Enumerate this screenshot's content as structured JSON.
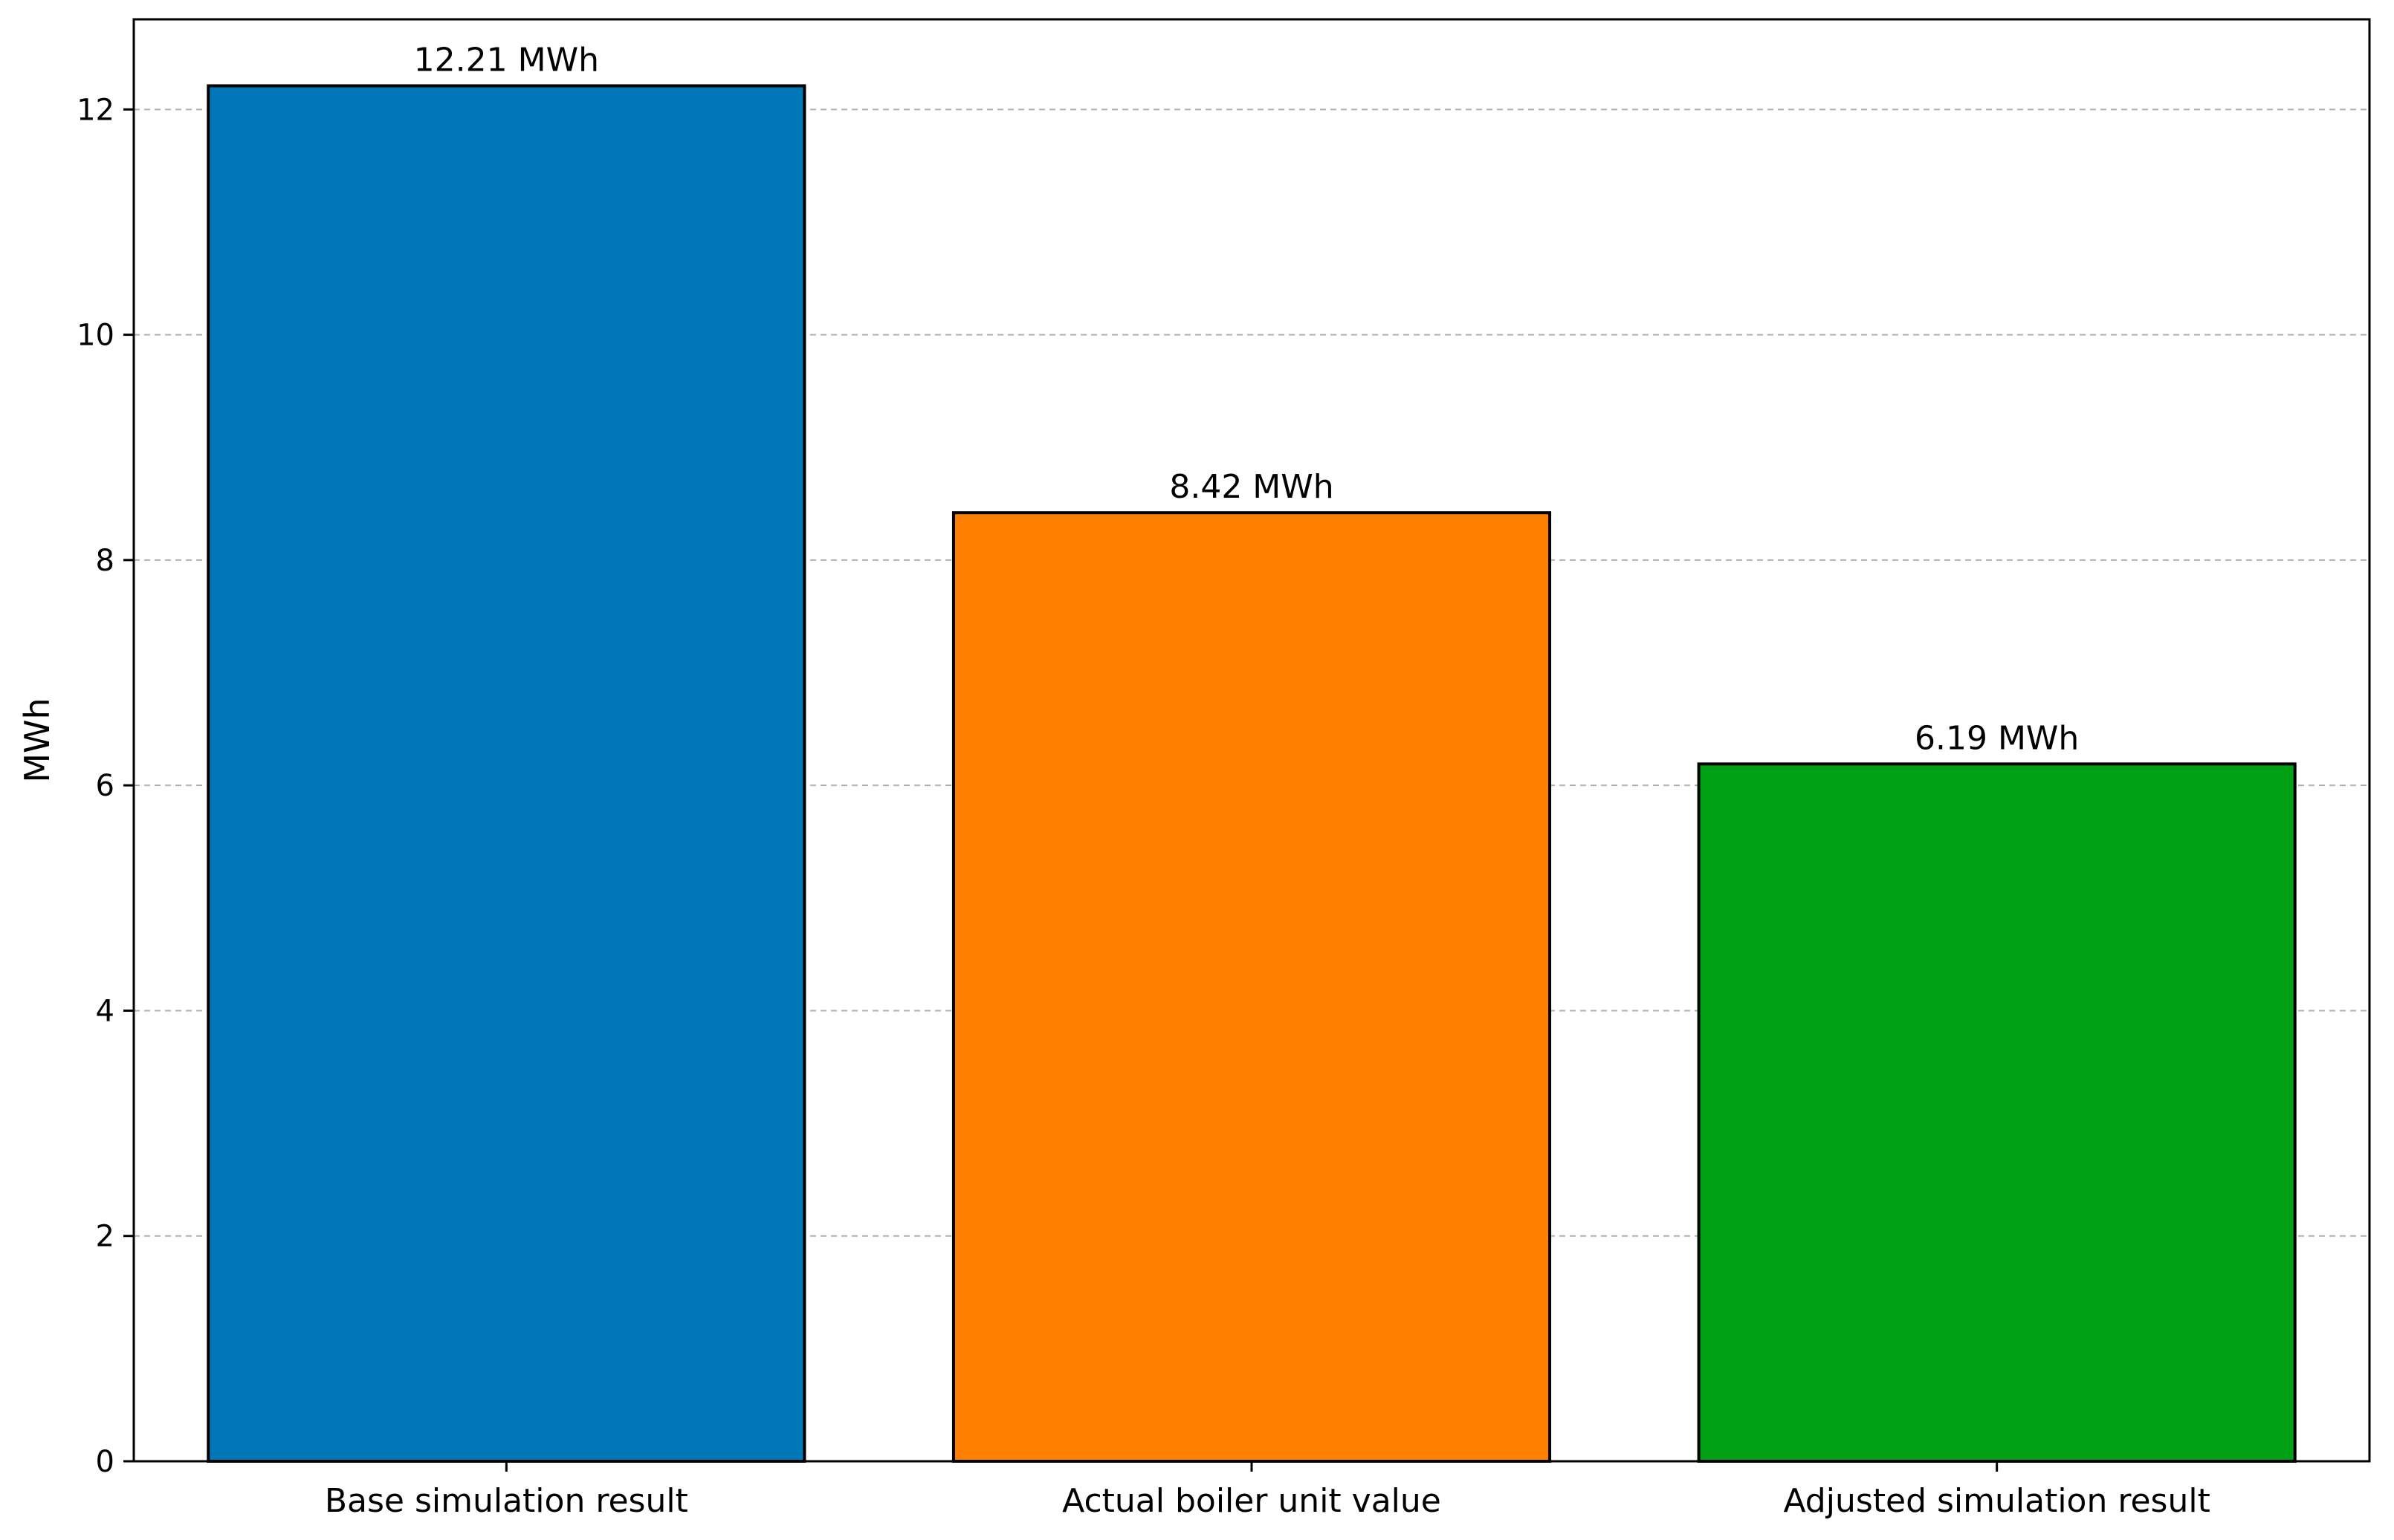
{
  "chart_data": {
    "type": "bar",
    "title": "",
    "xlabel": "",
    "ylabel": "MWh",
    "categories": [
      "Base simulation result",
      "Actual boiler unit value",
      "Adjusted simulation result"
    ],
    "values": [
      12.21,
      8.42,
      6.19
    ],
    "value_labels": [
      "12.21 MWh",
      "8.42 MWh",
      "6.19 MWh"
    ],
    "colors": [
      "#0077b6",
      "#ff7f00",
      "#00a015"
    ],
    "edge_color": "#000000",
    "ylim": [
      0,
      12.8
    ],
    "yticks": [
      0,
      2,
      4,
      6,
      8,
      10,
      12
    ],
    "grid": "y-dashed",
    "legend": "none"
  }
}
